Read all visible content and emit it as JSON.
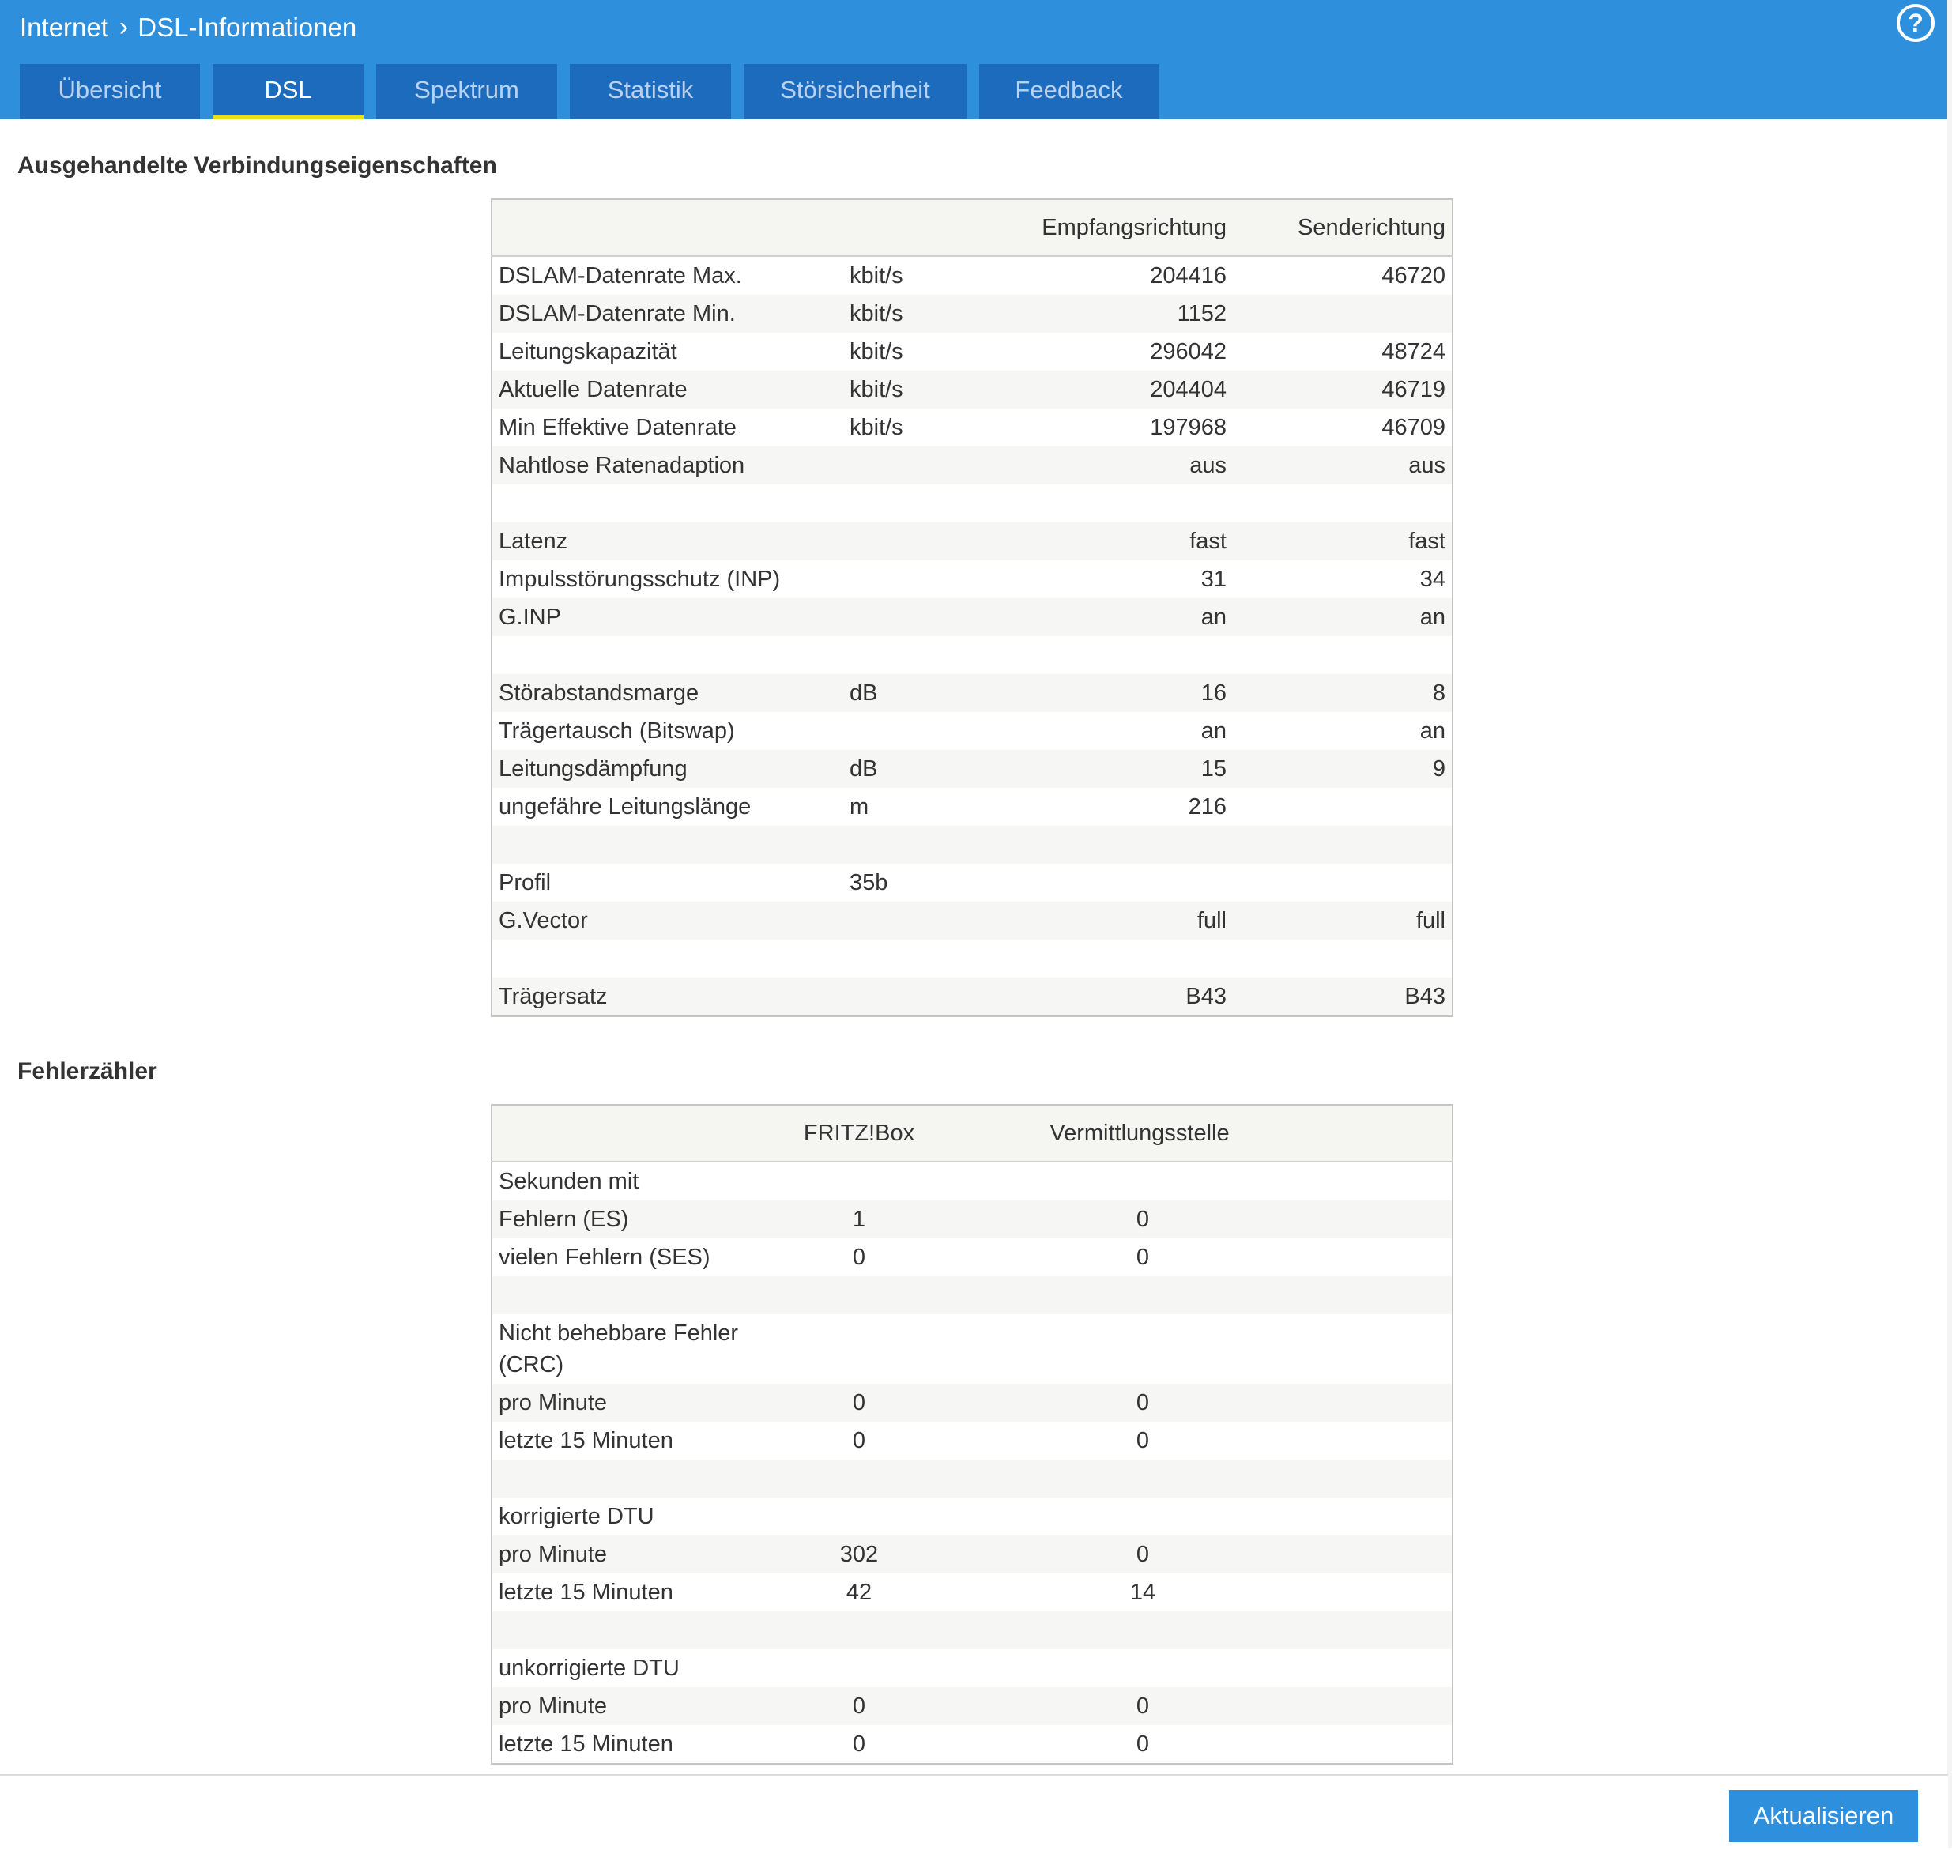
{
  "breadcrumb": {
    "root": "Internet",
    "separator": "›",
    "current": "DSL-Informationen"
  },
  "help_icon": "?",
  "tabs": [
    {
      "label": "Übersicht",
      "active": false
    },
    {
      "label": "DSL",
      "active": true
    },
    {
      "label": "Spektrum",
      "active": false
    },
    {
      "label": "Statistik",
      "active": false
    },
    {
      "label": "Störsicherheit",
      "active": false
    },
    {
      "label": "Feedback",
      "active": false
    }
  ],
  "connection": {
    "heading": "Ausgehandelte Verbindungseigenschaften",
    "columns": [
      "",
      "",
      "Empfangsrichtung",
      "Senderichtung"
    ],
    "rows": [
      [
        "DSLAM-Datenrate Max.",
        "kbit/s",
        "204416",
        "46720"
      ],
      [
        "DSLAM-Datenrate Min.",
        "kbit/s",
        "1152",
        ""
      ],
      [
        "Leitungskapazität",
        "kbit/s",
        "296042",
        "48724"
      ],
      [
        "Aktuelle Datenrate",
        "kbit/s",
        "204404",
        "46719"
      ],
      [
        "Min Effektive Datenrate",
        "kbit/s",
        "197968",
        "46709"
      ],
      [
        "Nahtlose Ratenadaption",
        "",
        "aus",
        "aus"
      ],
      [
        "",
        "",
        "",
        ""
      ],
      [
        "Latenz",
        "",
        "fast",
        "fast"
      ],
      [
        "Impulsstörungsschutz (INP)",
        "",
        "31",
        "34"
      ],
      [
        "G.INP",
        "",
        "an",
        "an"
      ],
      [
        "",
        "",
        "",
        ""
      ],
      [
        "Störabstandsmarge",
        "dB",
        "16",
        "8"
      ],
      [
        "Trägertausch (Bitswap)",
        "",
        "an",
        "an"
      ],
      [
        "Leitungsdämpfung",
        "dB",
        "15",
        "9"
      ],
      [
        "ungefähre Leitungslänge",
        "m",
        "216",
        ""
      ],
      [
        "",
        "",
        "",
        ""
      ],
      [
        "Profil",
        "35b",
        "",
        ""
      ],
      [
        "G.Vector",
        "",
        "full",
        "full"
      ],
      [
        "",
        "",
        "",
        ""
      ],
      [
        "Trägersatz",
        "",
        "B43",
        "B43"
      ]
    ]
  },
  "errors": {
    "heading": "Fehlerzähler",
    "columns": [
      "",
      "FRITZ!Box",
      "Vermittlungsstelle",
      ""
    ],
    "rows": [
      [
        "Sekunden mit",
        "",
        "",
        ""
      ],
      [
        "Fehlern (ES)",
        "1",
        "0",
        ""
      ],
      [
        "vielen Fehlern (SES)",
        "0",
        "0",
        ""
      ],
      [
        "",
        "",
        "",
        ""
      ],
      [
        "Nicht behebbare Fehler (CRC)",
        "",
        "",
        ""
      ],
      [
        "pro Minute",
        "0",
        "0",
        ""
      ],
      [
        "letzte 15 Minuten",
        "0",
        "0",
        ""
      ],
      [
        "",
        "",
        "",
        ""
      ],
      [
        "korrigierte DTU",
        "",
        "",
        ""
      ],
      [
        "pro Minute",
        "302",
        "0",
        ""
      ],
      [
        "letzte 15 Minuten",
        "42",
        "14",
        ""
      ],
      [
        "",
        "",
        "",
        ""
      ],
      [
        "unkorrigierte DTU",
        "",
        "",
        ""
      ],
      [
        "pro Minute",
        "0",
        "0",
        ""
      ],
      [
        "letzte 15 Minuten",
        "0",
        "0",
        ""
      ]
    ]
  },
  "footer": {
    "refresh_label": "Aktualisieren"
  }
}
